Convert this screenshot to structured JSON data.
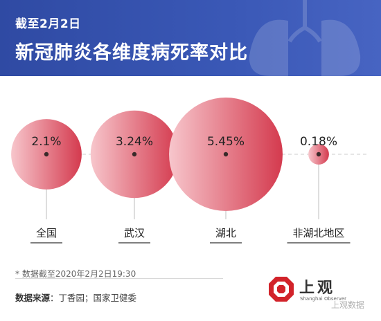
{
  "header": {
    "subtitle": "截至2月2日",
    "title": "新冠肺炎各维度病死率对比"
  },
  "chart_data": {
    "type": "bubble",
    "title": "新冠肺炎各维度病死率对比",
    "categories": [
      "全国",
      "武汉",
      "湖北",
      "非湖北地区"
    ],
    "values": [
      2.1,
      3.24,
      5.45,
      0.18
    ],
    "value_labels": [
      "2.1%",
      "3.24%",
      "5.45%",
      "0.18%"
    ],
    "unit": "%",
    "colors": {
      "bubble_light": "#f7c6cc",
      "bubble_dark": "#d43a4e",
      "dot": "#3a2a2a",
      "dash": "#cccccc",
      "stem": "#bdbdbd"
    }
  },
  "footer": {
    "note": "* 数据截至2020年2月2日19:30",
    "source_label": "数据来源",
    "source_text": "：丁香园；国家卫健委",
    "logo_text": "上观",
    "logo_sub": "Shanghai Observer",
    "watermark": "上观数据"
  }
}
